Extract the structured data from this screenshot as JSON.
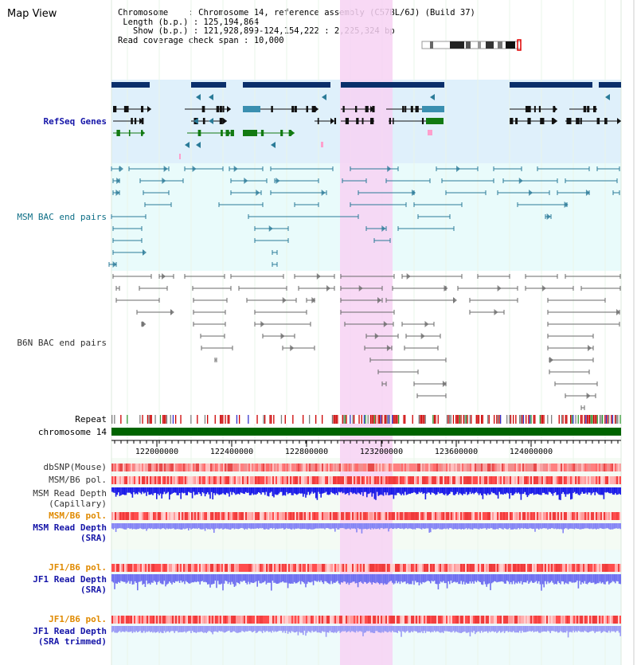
{
  "page_title": "Map View",
  "info": {
    "chromosome_label": "Chromosome",
    "chromosome_value": "Chromosome 14, reference assembly (C57BL/6J) (Build 37)",
    "length_label": "Length (b.p.)",
    "length_value": "125,194,864",
    "show_label": "Show (b.p.)",
    "show_value": "121,928,899-124,154,222 : 2,225,324 bp",
    "coverage_label": "Read coverage check span",
    "coverage_value": "10,000"
  },
  "tracks": {
    "refseq": "RefSeq Genes",
    "msm_bac": "MSM BAC end pairs",
    "b6n_bac": "B6N BAC end pairs",
    "repeat": "Repeat",
    "chromosome": "chromosome 14",
    "dbsnp": "dbSNP(Mouse)",
    "msm_pol_1": "MSM/B6 pol.",
    "msm_depth_cap_1": "MSM Read Depth",
    "msm_depth_cap_2": "(Capillary)",
    "msm_pol_2": "MSM/B6 pol.",
    "msm_depth_sra_1": "MSM Read Depth",
    "msm_depth_sra_2": "(SRA)",
    "jf1_pol_1": "JF1/B6 pol.",
    "jf1_depth_sra_1": "JF1 Read Depth",
    "jf1_depth_sra_2": "(SRA)",
    "jf1_pol_2": "JF1/B6 pol.",
    "jf1_depth_trim_1": "JF1 Read Depth",
    "jf1_depth_trim_2": "(SRA trimmed)"
  },
  "axis_ticks": [
    "122000000",
    "122400000",
    "122800000",
    "123200000",
    "123600000",
    "124000000"
  ],
  "colors": {
    "refseq_bg": "#dff0fb",
    "msm_bac_bg": "#e9fbfb",
    "highlight": "#f7d2f3",
    "chromosome_bar": "#006400",
    "msm_bac_color": "#2a7b98",
    "b6n_bac_color": "#6a6a6a"
  }
}
